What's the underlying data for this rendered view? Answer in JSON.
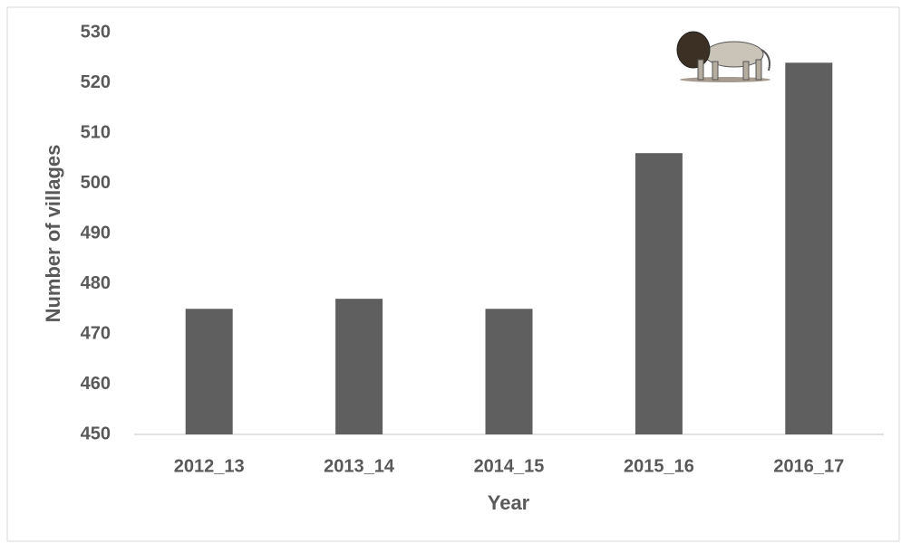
{
  "chart_data": {
    "type": "bar",
    "x_label": "Year",
    "y_label": "Number of villages",
    "categories": [
      "2012_13",
      "2013_14",
      "2014_15",
      "2015_16",
      "2016_17"
    ],
    "values": [
      475,
      477,
      475,
      506,
      524
    ],
    "color": "#5f5f5f",
    "ylim": [
      450,
      530
    ],
    "yticks": [
      450,
      460,
      470,
      480,
      490,
      500,
      510,
      520,
      530
    ],
    "grid": false
  }
}
